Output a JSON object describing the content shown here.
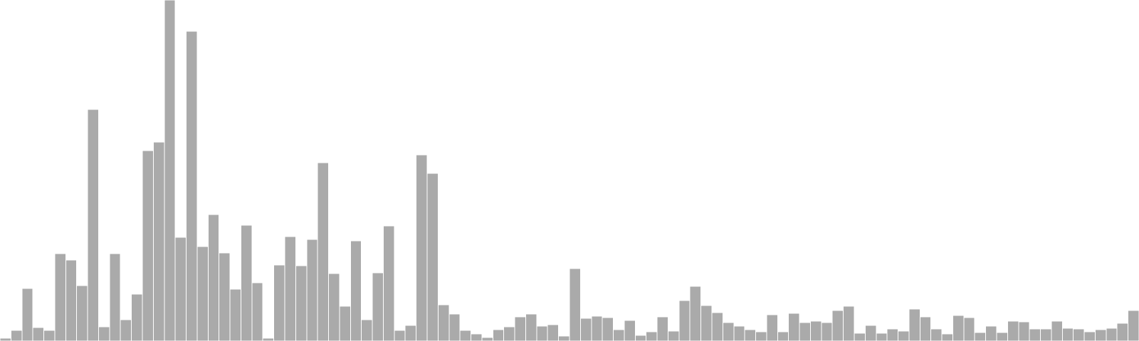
{
  "chart_data": {
    "type": "bar",
    "title": "",
    "xlabel": "",
    "ylabel": "",
    "axes_visible": false,
    "grid": false,
    "ylim": [
      0,
      480
    ],
    "bar_color": "#aaaaaa",
    "bar_edge_color": "#ffffff",
    "background_color": "#ffffff",
    "values": [
      4,
      15,
      74,
      19,
      15,
      123,
      114,
      78,
      326,
      20,
      123,
      30,
      66,
      268,
      280,
      480,
      146,
      436,
      133,
      178,
      124,
      73,
      163,
      82,
      4,
      107,
      147,
      106,
      143,
      251,
      95,
      49,
      141,
      30,
      96,
      162,
      15,
      22,
      262,
      236,
      51,
      38,
      15,
      10,
      5,
      16,
      20,
      34,
      38,
      21,
      23,
      7,
      102,
      32,
      35,
      33,
      16,
      29,
      8,
      13,
      34,
      14,
      57,
      77,
      50,
      40,
      26,
      21,
      16,
      13,
      37,
      13,
      39,
      26,
      28,
      26,
      43,
      49,
      11,
      22,
      11,
      17,
      14,
      45,
      34,
      17,
      10,
      36,
      33,
      12,
      21,
      12,
      28,
      27,
      17,
      17,
      28,
      18,
      17,
      13,
      16,
      18,
      25,
      43
    ]
  }
}
